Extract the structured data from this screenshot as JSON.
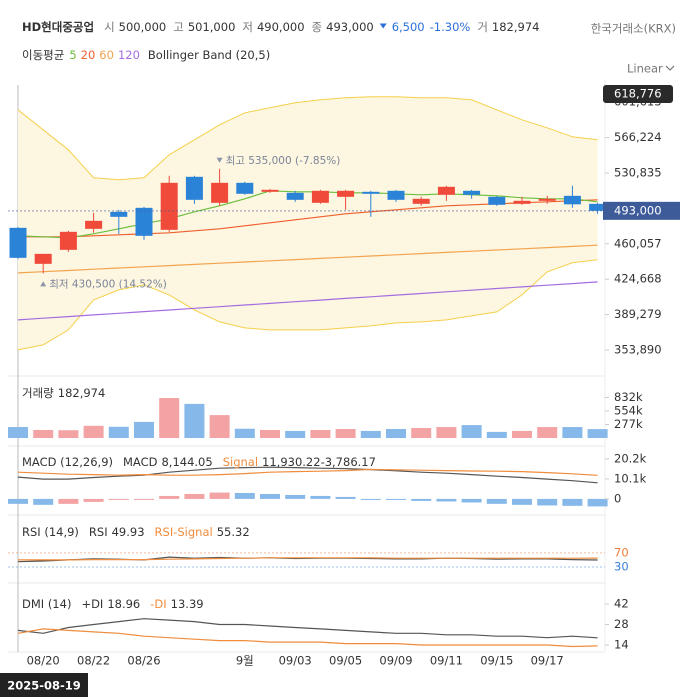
{
  "header": {
    "name": "HD현대중공업",
    "open_label": "시",
    "open": "500,000",
    "high_label": "고",
    "high": "501,000",
    "low_label": "저",
    "low": "490,000",
    "close_label": "종",
    "close": "493,000",
    "change": "6,500",
    "change_pct": "-1.30%",
    "volume_label": "거",
    "volume": "182,974",
    "exchange": "한국거래소(KRX)",
    "scale_button": "Linear",
    "crosshair_date": "2025-08-19"
  },
  "chart_data": [
    {
      "type": "candlestick",
      "legend_title": "이동평균",
      "color_up": "#f04a3a",
      "color_down": "#2b83d8",
      "open": [
        476000,
        440000,
        454000,
        475000,
        492000,
        496000,
        474000,
        527000,
        501000,
        521000,
        512000,
        511000,
        501000,
        507000,
        512000,
        513000,
        500000,
        509000,
        513000,
        507000,
        500000,
        503000,
        508000,
        500000
      ],
      "high": [
        477000,
        450000,
        473000,
        491000,
        494000,
        497000,
        528000,
        528000,
        535000,
        522000,
        515000,
        513000,
        514000,
        514000,
        513000,
        514000,
        507000,
        518000,
        514000,
        508000,
        507000,
        508000,
        518000,
        501000
      ],
      "low": [
        445000,
        430500,
        452000,
        471000,
        470000,
        464000,
        472000,
        500000,
        498000,
        509000,
        511000,
        502000,
        500000,
        494000,
        487000,
        502000,
        498000,
        503000,
        505000,
        498000,
        499000,
        500000,
        496000,
        490000
      ],
      "close": [
        446000,
        450000,
        472000,
        483000,
        487000,
        468000,
        521000,
        504000,
        521000,
        510000,
        514000,
        504000,
        513000,
        513000,
        510000,
        504000,
        505000,
        517000,
        509000,
        499000,
        503000,
        505000,
        499500,
        493000
      ],
      "series": [
        {
          "name": "5",
          "color": "#6cbf3e",
          "values": [
            468000,
            467000,
            466000,
            470000,
            475000,
            480000,
            485000,
            492000,
            498000,
            505000,
            513000,
            512000,
            512000,
            511000,
            511000,
            510000,
            509000,
            510000,
            509000,
            508000,
            506000,
            505000,
            505000,
            502000
          ]
        },
        {
          "name": "20",
          "color": "#f0602e",
          "values": [
            467000,
            467000,
            467000,
            468000,
            469000,
            470000,
            471000,
            473000,
            475000,
            478000,
            481000,
            484000,
            487000,
            490000,
            492000,
            494000,
            496000,
            498000,
            499000,
            500000,
            501000,
            502000,
            503000,
            504000
          ]
        },
        {
          "name": "60",
          "color": "#f2a450",
          "values": [
            431000,
            432200,
            433400,
            434600,
            435800,
            437000,
            438200,
            439400,
            440600,
            441800,
            443000,
            444200,
            445400,
            446600,
            447800,
            449000,
            450200,
            451400,
            452600,
            453800,
            455000,
            456200,
            457400,
            458600
          ]
        },
        {
          "name": "120",
          "color": "#a56de0",
          "values": [
            384000,
            385650,
            387300,
            388950,
            390600,
            392250,
            393900,
            395550,
            397200,
            398850,
            400500,
            402150,
            403800,
            405450,
            407100,
            408750,
            410400,
            412050,
            413700,
            415350,
            417000,
            418650,
            420300,
            421950
          ]
        }
      ],
      "bollinger": {
        "name": "Bollinger Band (20,5)",
        "color": "#f5d04a",
        "fill": "#fdf6e0",
        "upper": [
          594000,
          574000,
          554000,
          526000,
          524000,
          526000,
          549000,
          564000,
          579000,
          591000,
          596000,
          601000,
          604000,
          606000,
          607000,
          607000,
          606000,
          606000,
          604000,
          594000,
          584000,
          576000,
          567000,
          564000
        ],
        "lower": [
          354000,
          359000,
          374000,
          404000,
          414000,
          419000,
          409000,
          394000,
          382000,
          376000,
          374000,
          374000,
          374000,
          376000,
          378000,
          381000,
          382000,
          384000,
          388000,
          392000,
          409000,
          432000,
          441000,
          444000
        ]
      },
      "max_label": "최고 535,000 (-7.85%)",
      "min_label": "최저 430,500 (14.52%)",
      "range_marker": {
        "value": 618776,
        "label": "618,776"
      },
      "last_price": {
        "value": 493000,
        "label": "493,000"
      },
      "ylim": [
        333890,
        618776
      ],
      "yticks": [
        {
          "value": 353890,
          "label": "353,890"
        },
        {
          "value": 389279,
          "label": "389,279"
        },
        {
          "value": 424668,
          "label": "424,668"
        },
        {
          "value": 460057,
          "label": "460,057"
        },
        {
          "value": 530835,
          "label": "530,835"
        },
        {
          "value": 566224,
          "label": "566,224"
        },
        {
          "value": 601613,
          "label": "601,613"
        }
      ]
    },
    {
      "type": "bar",
      "name": "거래량",
      "legend_value": "182,974",
      "color_up": "#f3a3a3",
      "color_down": "#86b9ea",
      "values": [
        225000,
        165000,
        160000,
        250000,
        230000,
        330000,
        820000,
        700000,
        470000,
        190000,
        165000,
        145000,
        165000,
        185000,
        145000,
        185000,
        205000,
        225000,
        265000,
        125000,
        145000,
        225000,
        225000,
        182974
      ],
      "ylim": [
        0,
        1190000
      ],
      "yticks": [
        {
          "value": 277000,
          "label": "277k"
        },
        {
          "value": 554000,
          "label": "554k"
        },
        {
          "value": 832000,
          "label": "832k"
        }
      ]
    },
    {
      "type": "combo",
      "title": "MACD (12,26,9)",
      "series": [
        {
          "name": "MACD",
          "legend_value": "8,144.05",
          "color": "#555555",
          "values": [
            11000,
            10000,
            10000,
            10800,
            11500,
            12000,
            13500,
            14500,
            15500,
            15800,
            16000,
            15800,
            15500,
            15300,
            14800,
            14200,
            13500,
            13000,
            12300,
            11500,
            10800,
            10000,
            9200,
            8144.05
          ]
        },
        {
          "name": "Signal",
          "legend_value": "11,930.22",
          "color": "#f08c3c",
          "values": [
            13500,
            13000,
            12500,
            12300,
            12000,
            12300,
            12000,
            12000,
            12300,
            12800,
            13500,
            13800,
            14000,
            14300,
            14900,
            14700,
            14500,
            14300,
            14100,
            14000,
            13800,
            13300,
            12700,
            11930.22
          ]
        },
        {
          "type": "bar",
          "legend_value": "-3,786.17",
          "color_up": "#f3a3a3",
          "color_down": "#86b9ea",
          "values": [
            -2500,
            -3000,
            -2500,
            -1500,
            -500,
            -300,
            1500,
            2500,
            3200,
            3000,
            2500,
            2000,
            1500,
            1000,
            -100,
            -500,
            -1000,
            -1300,
            -1800,
            -2500,
            -3000,
            -3300,
            -3500,
            -3786.17
          ]
        }
      ],
      "ylim": [
        -5600,
        23700
      ],
      "yticks": [
        0,
        {
          "value": 10100,
          "label": "10.1k"
        },
        {
          "value": 20200,
          "label": "20.2k"
        }
      ]
    },
    {
      "type": "line",
      "title": "RSI (14,9)",
      "series": [
        {
          "name": "RSI",
          "legend_value": "49.93",
          "color": "#555555",
          "values": [
            45,
            47,
            50,
            53,
            52,
            50,
            58,
            55,
            57,
            55,
            56,
            54,
            55,
            55,
            54,
            53,
            53,
            55,
            54,
            52,
            53,
            53,
            51,
            49.93
          ]
        },
        {
          "name": "RSI-Signal",
          "legend_value": "55.32",
          "color": "#f08c3c",
          "values": [
            50,
            50,
            50,
            51,
            51,
            51,
            52,
            53,
            54,
            55,
            56,
            56,
            56,
            56,
            56,
            55,
            55,
            55,
            55,
            55,
            55,
            55,
            55,
            55.32
          ]
        }
      ],
      "ylim": [
        7,
        164
      ],
      "yticks": [
        30,
        70
      ],
      "ytick_colors": [
        "#3b82d8",
        "#f07c3c"
      ]
    },
    {
      "type": "line",
      "title": "DMI (14)",
      "series": [
        {
          "name": "+DI",
          "legend_value": "18.96",
          "color": "#555555",
          "values": [
            24,
            22,
            26,
            28,
            30,
            32,
            31,
            30,
            28,
            28,
            27,
            26,
            25,
            24,
            23,
            22,
            22,
            21,
            21,
            20,
            20,
            19,
            20,
            18.96
          ]
        },
        {
          "name": "-DI",
          "legend_value": "13.39",
          "color": "#f08c3c",
          "values": [
            22,
            25,
            24,
            23,
            22,
            20,
            19,
            18,
            17,
            17,
            16,
            16,
            16,
            15,
            15,
            15,
            14,
            14,
            14,
            14,
            14,
            14,
            13,
            13.39
          ]
        }
      ],
      "ylim": [
        10.6,
        51.6
      ],
      "yticks": [
        14,
        28,
        42
      ],
      "categories": [
        null,
        "08/20",
        null,
        "08/22",
        null,
        "08/26",
        null,
        null,
        null,
        "9월",
        null,
        "09/03",
        null,
        "09/05",
        null,
        "09/09",
        null,
        "09/11",
        null,
        "09/15",
        null,
        "09/17",
        null,
        null
      ]
    }
  ]
}
